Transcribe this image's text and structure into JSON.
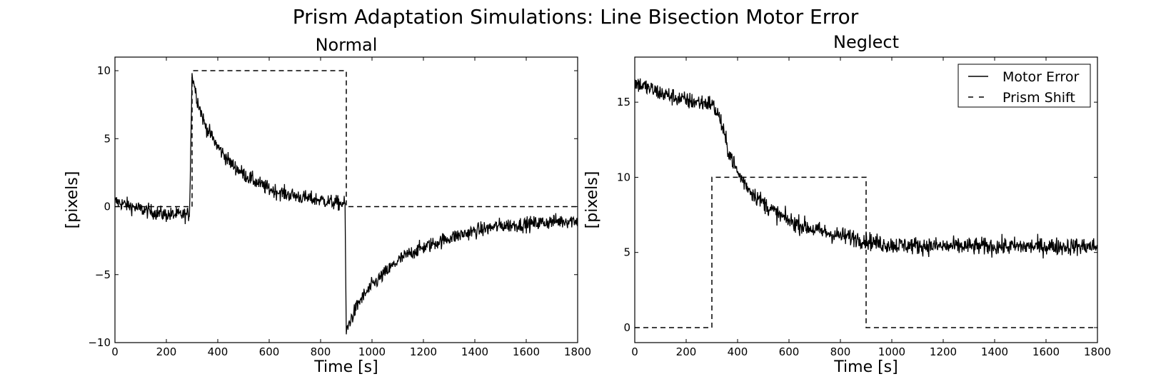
{
  "figure_title": "Prism Adaptation Simulations: Line Bisection Motor Error",
  "chart_data": [
    {
      "type": "line",
      "title": "Normal",
      "xlabel": "Time [s]",
      "ylabel": "[pixels]",
      "xlim": [
        0,
        1800
      ],
      "ylim": [
        -10,
        11
      ],
      "xticks": [
        0,
        200,
        400,
        600,
        800,
        1000,
        1200,
        1400,
        1600,
        1800
      ],
      "yticks": [
        -10,
        -5,
        0,
        5,
        10
      ],
      "xtick_labels": [
        "0",
        "200",
        "400",
        "600",
        "800",
        "1000",
        "1200",
        "1400",
        "1600",
        "1800"
      ],
      "ytick_labels": [
        "−10",
        "−5",
        "0",
        "5",
        "10"
      ],
      "legend": null,
      "series": [
        {
          "name": "Motor Error",
          "style": "solid",
          "noise": 0.55,
          "x": [
            0,
            100,
            200,
            290,
            300,
            320,
            350,
            400,
            450,
            500,
            550,
            600,
            650,
            700,
            750,
            800,
            850,
            895,
            900,
            910,
            950,
            1000,
            1050,
            1100,
            1150,
            1200,
            1300,
            1400,
            1500,
            1600,
            1700,
            1800
          ],
          "y": [
            0.4,
            -0.2,
            -0.6,
            -0.6,
            9.8,
            7.9,
            6.0,
            4.4,
            3.2,
            2.4,
            1.8,
            1.3,
            1.0,
            0.8,
            0.6,
            0.5,
            0.3,
            0.2,
            -9.3,
            -8.6,
            -7.0,
            -5.8,
            -4.9,
            -4.0,
            -3.4,
            -3.0,
            -2.3,
            -1.8,
            -1.4,
            -1.3,
            -1.1,
            -1.0
          ]
        },
        {
          "name": "Prism Shift",
          "style": "dashed",
          "noise": 0,
          "x": [
            0,
            300,
            300,
            900,
            900,
            1800
          ],
          "y": [
            0,
            0,
            10,
            10,
            0,
            0
          ]
        }
      ]
    },
    {
      "type": "line",
      "title": "Neglect",
      "xlabel": "Time [s]",
      "ylabel": "[pixels]",
      "xlim": [
        0,
        1800
      ],
      "ylim": [
        -1,
        18
      ],
      "xticks": [
        0,
        200,
        400,
        600,
        800,
        1000,
        1200,
        1400,
        1600,
        1800
      ],
      "yticks": [
        0,
        5,
        10,
        15
      ],
      "xtick_labels": [
        "0",
        "200",
        "400",
        "600",
        "800",
        "1000",
        "1200",
        "1400",
        "1600",
        "1800"
      ],
      "ytick_labels": [
        "0",
        "5",
        "10",
        "15"
      ],
      "legend": "top-right",
      "series": [
        {
          "name": "Motor Error",
          "style": "solid",
          "noise": 0.6,
          "x": [
            0,
            100,
            200,
            300,
            330,
            360,
            400,
            450,
            500,
            550,
            600,
            650,
            700,
            750,
            800,
            850,
            900,
            950,
            1000,
            1200,
            1400,
            1600,
            1800
          ],
          "y": [
            16.3,
            15.6,
            15.1,
            14.9,
            14.0,
            12.0,
            10.3,
            9.1,
            8.3,
            7.6,
            7.1,
            6.8,
            6.5,
            6.3,
            6.1,
            6.0,
            5.8,
            5.6,
            5.5,
            5.4,
            5.4,
            5.4,
            5.4
          ]
        },
        {
          "name": "Prism Shift",
          "style": "dashed",
          "noise": 0,
          "x": [
            0,
            300,
            300,
            900,
            900,
            1800
          ],
          "y": [
            0,
            0,
            10,
            10,
            0,
            0
          ]
        }
      ]
    }
  ]
}
